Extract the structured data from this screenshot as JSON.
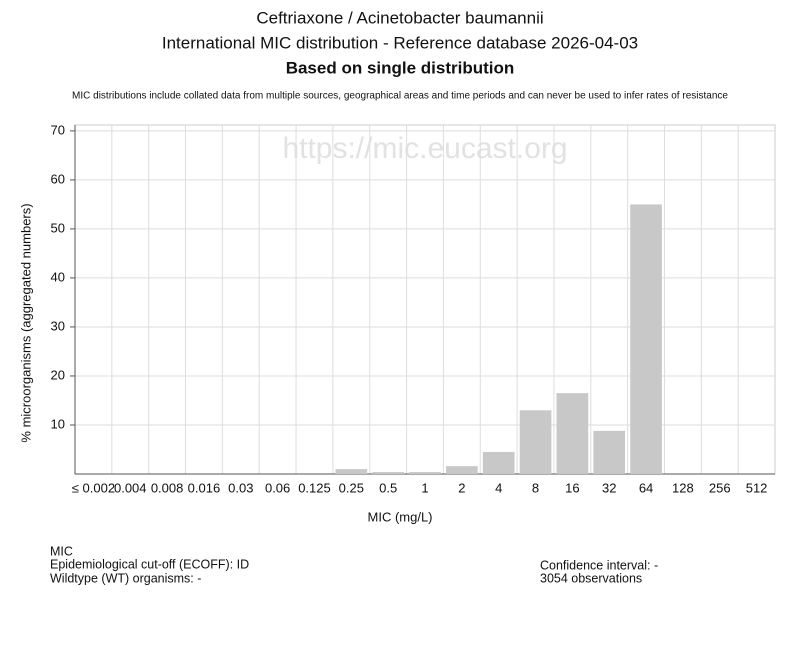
{
  "chart_data": {
    "type": "bar",
    "title": "Ceftriaxone / Acinetobacter baumannii",
    "subtitle": "International MIC distribution - Reference database 2026-04-03",
    "heading": "Based on single distribution",
    "note": "MIC distributions include collated data from multiple sources, geographical areas and time periods and can never be used to infer rates of resistance",
    "watermark": "https://mic.eucast.org",
    "x_label": "MIC (mg/L)",
    "y_label": "% microorganisms (aggregated numbers)",
    "categories": [
      "≤ 0.002",
      "0.004",
      "0.008",
      "0.016",
      "0.03",
      "0.06",
      "0.125",
      "0.25",
      "0.5",
      "1",
      "2",
      "4",
      "8",
      "16",
      "32",
      "64",
      "128",
      "256",
      "512"
    ],
    "values": [
      0,
      0,
      0,
      0,
      0,
      0,
      0,
      1.0,
      0.4,
      0.4,
      1.6,
      4.5,
      13.0,
      16.5,
      8.8,
      55.0,
      0,
      0,
      0
    ],
    "color": "#c8c8c8",
    "ylim": [
      0,
      71.2
    ],
    "yticks": [
      10,
      20,
      30,
      40,
      50,
      60,
      70
    ],
    "grid": true,
    "footer_left": [
      "MIC",
      "Epidemiological cut-off (ECOFF): ID",
      "Wildtype (WT) organisms:  -"
    ],
    "footer_right": [
      "Confidence interval: -",
      "3054 observations"
    ]
  }
}
